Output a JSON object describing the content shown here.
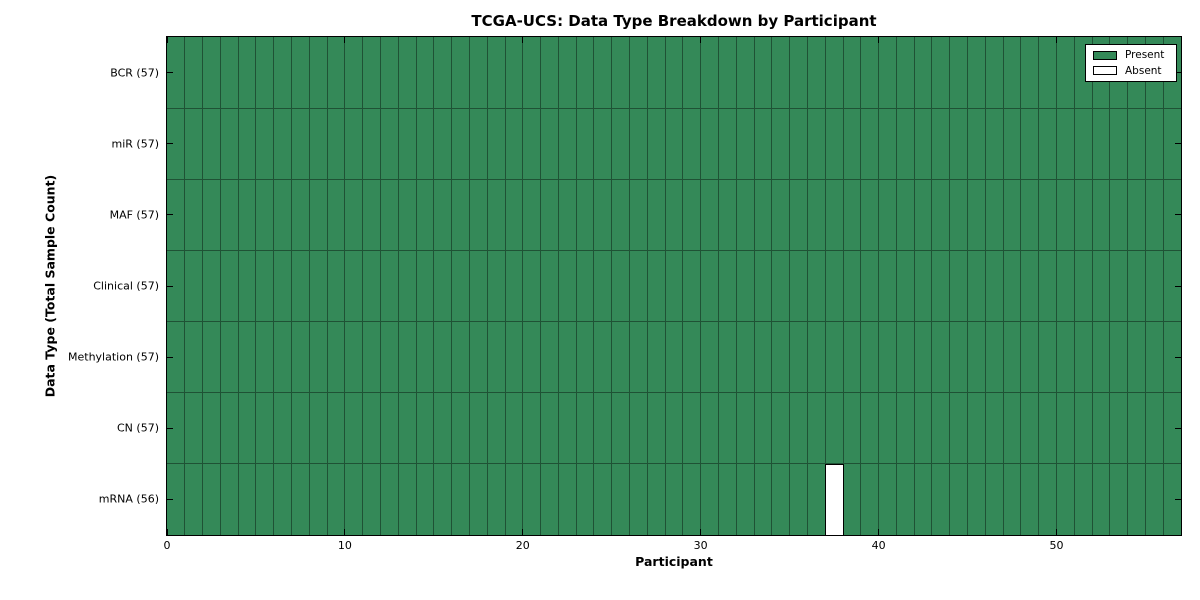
{
  "chart_data": {
    "type": "heatmap",
    "title": "TCGA-UCS: Data Type Breakdown by Participant",
    "xlabel": "Participant",
    "ylabel": "Data Type (Total Sample Count)",
    "x_ticks": [
      0,
      10,
      20,
      30,
      40,
      50
    ],
    "x_range": [
      0,
      57
    ],
    "n_participants": 57,
    "rows": [
      {
        "label": "BCR (57)",
        "data_type": "BCR",
        "present_count": 57,
        "absent_participants": []
      },
      {
        "label": "miR (57)",
        "data_type": "miR",
        "present_count": 57,
        "absent_participants": []
      },
      {
        "label": "MAF (57)",
        "data_type": "MAF",
        "present_count": 57,
        "absent_participants": []
      },
      {
        "label": "Clinical (57)",
        "data_type": "Clinical",
        "present_count": 57,
        "absent_participants": []
      },
      {
        "label": "Methylation (57)",
        "data_type": "Methylation",
        "present_count": 57,
        "absent_participants": []
      },
      {
        "label": "CN (57)",
        "data_type": "CN",
        "present_count": 57,
        "absent_participants": []
      },
      {
        "label": "mRNA (56)",
        "data_type": "mRNA",
        "present_count": 56,
        "absent_participants": [
          37
        ]
      }
    ],
    "legend": {
      "position": "upper-right",
      "entries": [
        {
          "label": "Present",
          "color": "#348958"
        },
        {
          "label": "Absent",
          "color": "#ffffff"
        }
      ]
    },
    "colors": {
      "present": "#348958",
      "absent": "#ffffff",
      "cell_separator": "#1f5235",
      "axis": "#000000"
    },
    "grid": true
  }
}
